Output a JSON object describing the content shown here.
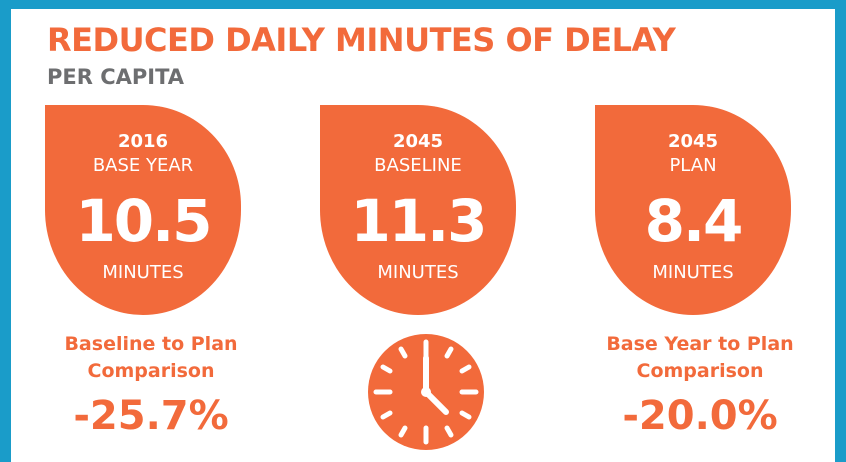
{
  "header": {
    "title": "REDUCED DAILY MINUTES OF DELAY",
    "subtitle": "PER CAPITA"
  },
  "cards": [
    {
      "year": "2016",
      "label": "BASE YEAR",
      "value": "10.5",
      "unit": "MINUTES"
    },
    {
      "year": "2045",
      "label": "BASELINE",
      "value": "11.3",
      "unit": "MINUTES"
    },
    {
      "year": "2045",
      "label": "PLAN",
      "value": "8.4",
      "unit": "MINUTES"
    }
  ],
  "comparisons": [
    {
      "lines": [
        "Baseline to Plan",
        "Comparison"
      ],
      "value": "-25.7%"
    },
    {
      "lines": [
        "Base Year to Plan",
        "Comparison"
      ],
      "value": "-20.0%"
    }
  ]
}
